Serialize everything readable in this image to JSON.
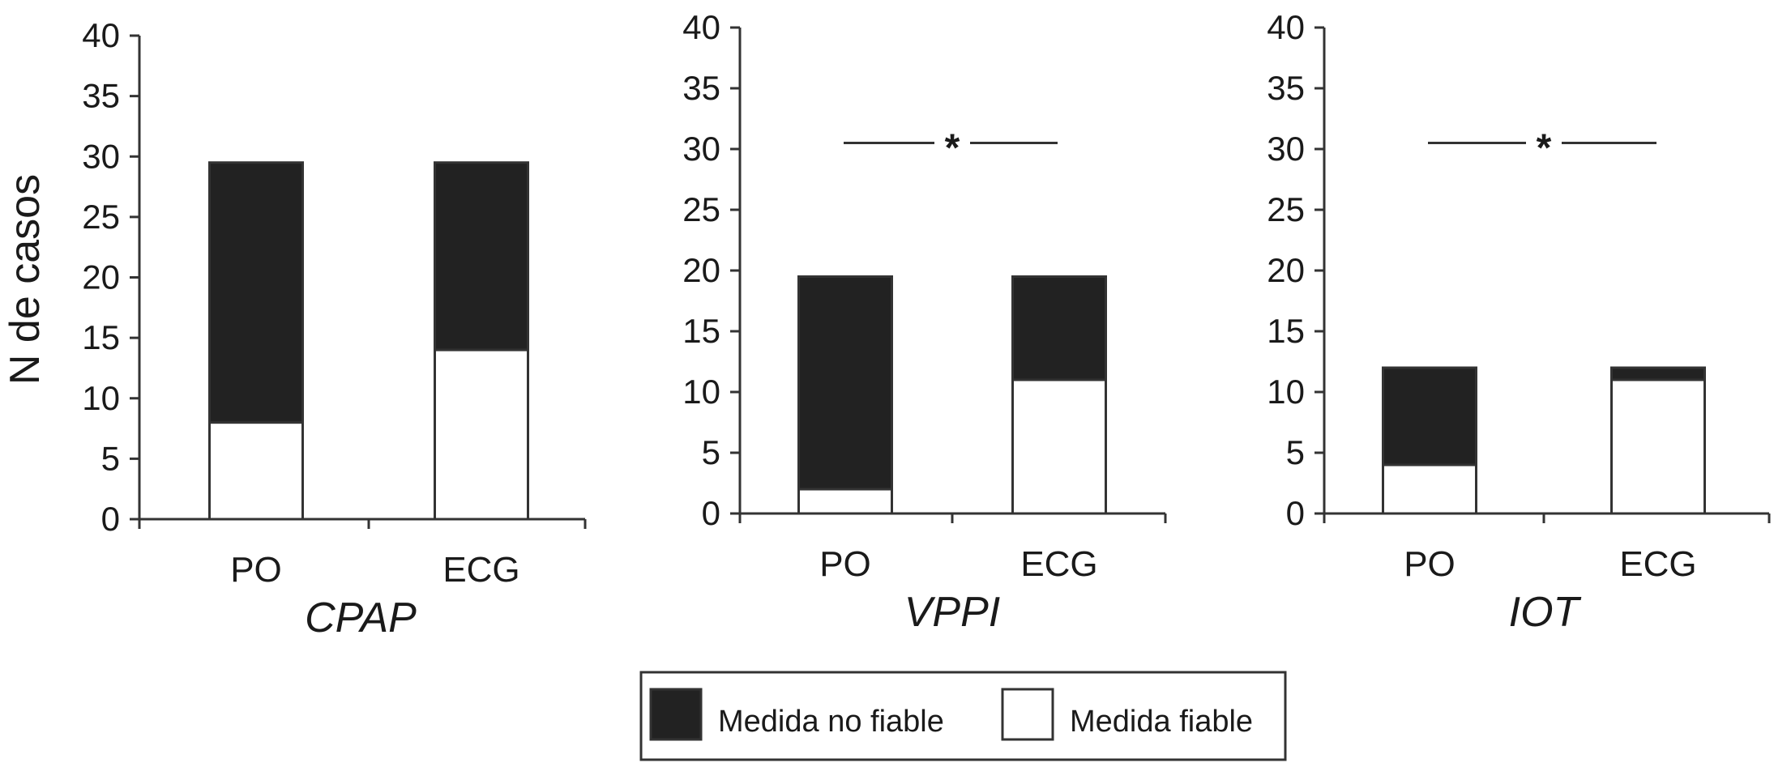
{
  "chart_data": {
    "type": "bar",
    "stacked": true,
    "ylabel": "N de casos",
    "ylim": [
      0,
      40
    ],
    "yticks": [
      0,
      5,
      10,
      15,
      20,
      25,
      30,
      35,
      40
    ],
    "grid": false,
    "legend_position": "bottom-center",
    "colors": {
      "Medida no fiable": "#222222",
      "Medida fiable": "#ffffff",
      "axis": "#333333"
    },
    "legend": [
      "Medida no fiable",
      "Medida fiable"
    ],
    "panels": [
      {
        "title": "CPAP",
        "categories": [
          "PO",
          "ECG"
        ],
        "series": [
          {
            "name": "Medida fiable",
            "values": [
              8,
              14
            ]
          },
          {
            "name": "Medida no fiable",
            "values": [
              21.5,
              15.5
            ]
          }
        ],
        "significance": ""
      },
      {
        "title": "VPPI",
        "categories": [
          "PO",
          "ECG"
        ],
        "series": [
          {
            "name": "Medida fiable",
            "values": [
              2,
              11
            ]
          },
          {
            "name": "Medida no fiable",
            "values": [
              17.5,
              8.5
            ]
          }
        ],
        "significance": "*",
        "significance_level": 30.5
      },
      {
        "title": "IOT",
        "categories": [
          "PO",
          "ECG"
        ],
        "series": [
          {
            "name": "Medida fiable",
            "values": [
              4,
              11
            ]
          },
          {
            "name": "Medida no fiable",
            "values": [
              8,
              1
            ]
          }
        ],
        "significance": "*",
        "significance_level": 30.5
      }
    ]
  }
}
